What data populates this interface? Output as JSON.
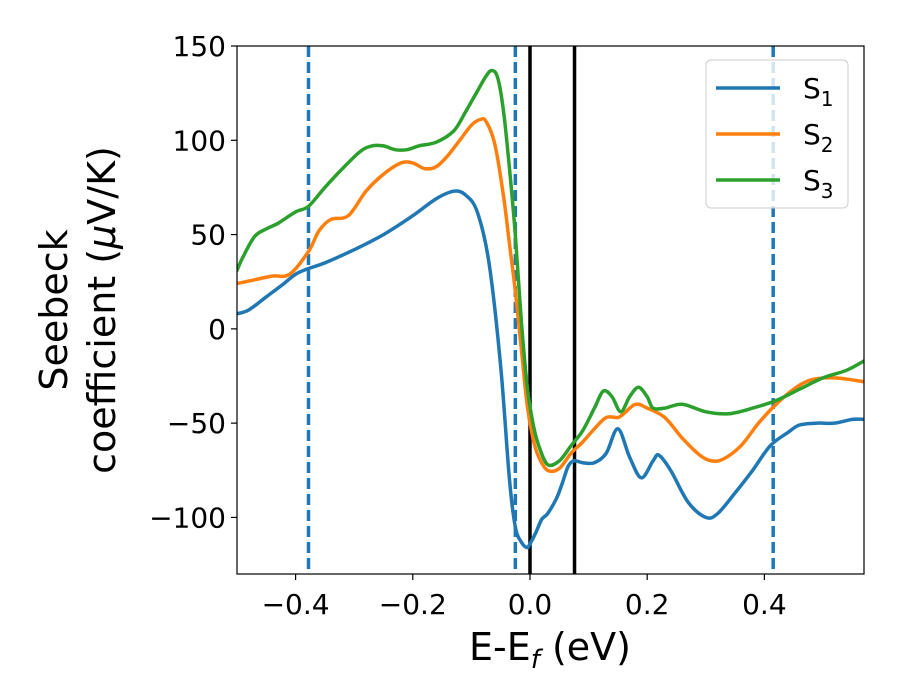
{
  "chart_data": {
    "type": "line",
    "title": "",
    "xlabel": {
      "main": "E-E",
      "sub": "f",
      "units": " (eV)"
    },
    "ylabel": {
      "line1": "Seebeck",
      "line2_prefix": "coefficient  (",
      "mu": "μ",
      "line2_suffix": "V/K)"
    },
    "xlim": [
      -0.5,
      0.57
    ],
    "ylim": [
      -130,
      150
    ],
    "xticks": [
      -0.4,
      -0.2,
      0.0,
      0.2,
      0.4
    ],
    "xtick_labels": [
      "−0.4",
      "−0.2",
      "0.0",
      "0.2",
      "0.4"
    ],
    "yticks": [
      -100,
      -50,
      0,
      50,
      100,
      150
    ],
    "ytick_labels": [
      "−100",
      "−50",
      "0",
      "50",
      "100",
      "150"
    ],
    "grid": false,
    "legend_position": "top-right",
    "vlines": [
      {
        "x": -0.378,
        "style": "dashed",
        "color": "#1f77b4"
      },
      {
        "x": -0.025,
        "style": "dashed",
        "color": "#1f77b4"
      },
      {
        "x": 0.0,
        "style": "solid",
        "color": "#000000"
      },
      {
        "x": 0.076,
        "style": "solid",
        "color": "#000000"
      },
      {
        "x": 0.415,
        "style": "dashed",
        "color": "#1f77b4"
      }
    ],
    "series": [
      {
        "name": "S",
        "sub": "1",
        "color": "#1f77b4",
        "points": [
          [
            -0.5,
            8
          ],
          [
            -0.48,
            10
          ],
          [
            -0.45,
            17
          ],
          [
            -0.42,
            24
          ],
          [
            -0.4,
            29
          ],
          [
            -0.378,
            32
          ],
          [
            -0.35,
            35
          ],
          [
            -0.3,
            42
          ],
          [
            -0.25,
            50
          ],
          [
            -0.2,
            60
          ],
          [
            -0.16,
            69
          ],
          [
            -0.13,
            73
          ],
          [
            -0.11,
            71
          ],
          [
            -0.09,
            62
          ],
          [
            -0.07,
            35
          ],
          [
            -0.05,
            -20
          ],
          [
            -0.035,
            -80
          ],
          [
            -0.025,
            -105
          ],
          [
            -0.015,
            -113
          ],
          [
            -0.005,
            -116
          ],
          [
            0.0,
            -114
          ],
          [
            0.01,
            -108
          ],
          [
            0.02,
            -101
          ],
          [
            0.03,
            -98
          ],
          [
            0.045,
            -90
          ],
          [
            0.055,
            -82
          ],
          [
            0.065,
            -73
          ],
          [
            0.075,
            -70
          ],
          [
            0.09,
            -71
          ],
          [
            0.11,
            -71
          ],
          [
            0.13,
            -66
          ],
          [
            0.15,
            -53
          ],
          [
            0.17,
            -68
          ],
          [
            0.19,
            -79
          ],
          [
            0.21,
            -70
          ],
          [
            0.22,
            -67
          ],
          [
            0.24,
            -75
          ],
          [
            0.27,
            -92
          ],
          [
            0.3,
            -100
          ],
          [
            0.32,
            -98
          ],
          [
            0.35,
            -87
          ],
          [
            0.38,
            -75
          ],
          [
            0.41,
            -62
          ],
          [
            0.44,
            -55
          ],
          [
            0.46,
            -51
          ],
          [
            0.49,
            -50
          ],
          [
            0.52,
            -50
          ],
          [
            0.55,
            -48
          ],
          [
            0.57,
            -48
          ]
        ]
      },
      {
        "name": "S",
        "sub": "2",
        "color": "#ff7f0e",
        "points": [
          [
            -0.5,
            24
          ],
          [
            -0.47,
            26
          ],
          [
            -0.44,
            28
          ],
          [
            -0.41,
            29
          ],
          [
            -0.378,
            41
          ],
          [
            -0.36,
            52
          ],
          [
            -0.34,
            58
          ],
          [
            -0.31,
            60
          ],
          [
            -0.28,
            73
          ],
          [
            -0.25,
            82
          ],
          [
            -0.22,
            88
          ],
          [
            -0.2,
            88
          ],
          [
            -0.18,
            85
          ],
          [
            -0.16,
            86
          ],
          [
            -0.14,
            92
          ],
          [
            -0.12,
            100
          ],
          [
            -0.1,
            108
          ],
          [
            -0.085,
            111
          ],
          [
            -0.075,
            110
          ],
          [
            -0.06,
            98
          ],
          [
            -0.045,
            70
          ],
          [
            -0.035,
            45
          ],
          [
            -0.025,
            20
          ],
          [
            -0.015,
            -10
          ],
          [
            -0.005,
            -40
          ],
          [
            0.005,
            -58
          ],
          [
            0.015,
            -68
          ],
          [
            0.03,
            -75
          ],
          [
            0.05,
            -74
          ],
          [
            0.07,
            -66
          ],
          [
            0.09,
            -60
          ],
          [
            0.11,
            -53
          ],
          [
            0.13,
            -47
          ],
          [
            0.15,
            -47
          ],
          [
            0.16,
            -45
          ],
          [
            0.18,
            -40
          ],
          [
            0.2,
            -42
          ],
          [
            0.23,
            -47
          ],
          [
            0.26,
            -58
          ],
          [
            0.29,
            -67
          ],
          [
            0.31,
            -70
          ],
          [
            0.33,
            -69
          ],
          [
            0.36,
            -62
          ],
          [
            0.39,
            -50
          ],
          [
            0.42,
            -40
          ],
          [
            0.45,
            -32
          ],
          [
            0.48,
            -27
          ],
          [
            0.52,
            -26
          ],
          [
            0.57,
            -28
          ]
        ]
      },
      {
        "name": "S",
        "sub": "3",
        "color": "#2ca02c",
        "points": [
          [
            -0.5,
            31
          ],
          [
            -0.49,
            38
          ],
          [
            -0.47,
            49
          ],
          [
            -0.45,
            53
          ],
          [
            -0.43,
            56
          ],
          [
            -0.4,
            62
          ],
          [
            -0.378,
            65
          ],
          [
            -0.35,
            75
          ],
          [
            -0.32,
            85
          ],
          [
            -0.29,
            94
          ],
          [
            -0.27,
            97
          ],
          [
            -0.25,
            97
          ],
          [
            -0.23,
            95
          ],
          [
            -0.21,
            95
          ],
          [
            -0.19,
            97
          ],
          [
            -0.16,
            99
          ],
          [
            -0.13,
            105
          ],
          [
            -0.11,
            115
          ],
          [
            -0.09,
            126
          ],
          [
            -0.075,
            134
          ],
          [
            -0.065,
            137
          ],
          [
            -0.055,
            133
          ],
          [
            -0.045,
            115
          ],
          [
            -0.035,
            85
          ],
          [
            -0.025,
            50
          ],
          [
            -0.015,
            5
          ],
          [
            -0.005,
            -30
          ],
          [
            0.005,
            -50
          ],
          [
            0.015,
            -62
          ],
          [
            0.03,
            -72
          ],
          [
            0.05,
            -70
          ],
          [
            0.07,
            -62
          ],
          [
            0.09,
            -54
          ],
          [
            0.11,
            -42
          ],
          [
            0.125,
            -33
          ],
          [
            0.14,
            -36
          ],
          [
            0.155,
            -44
          ],
          [
            0.17,
            -36
          ],
          [
            0.185,
            -31
          ],
          [
            0.2,
            -36
          ],
          [
            0.21,
            -42
          ],
          [
            0.23,
            -42
          ],
          [
            0.26,
            -40
          ],
          [
            0.3,
            -44
          ],
          [
            0.34,
            -45
          ],
          [
            0.38,
            -42
          ],
          [
            0.42,
            -38
          ],
          [
            0.46,
            -32
          ],
          [
            0.5,
            -26
          ],
          [
            0.54,
            -22
          ],
          [
            0.57,
            -17
          ]
        ]
      }
    ]
  }
}
